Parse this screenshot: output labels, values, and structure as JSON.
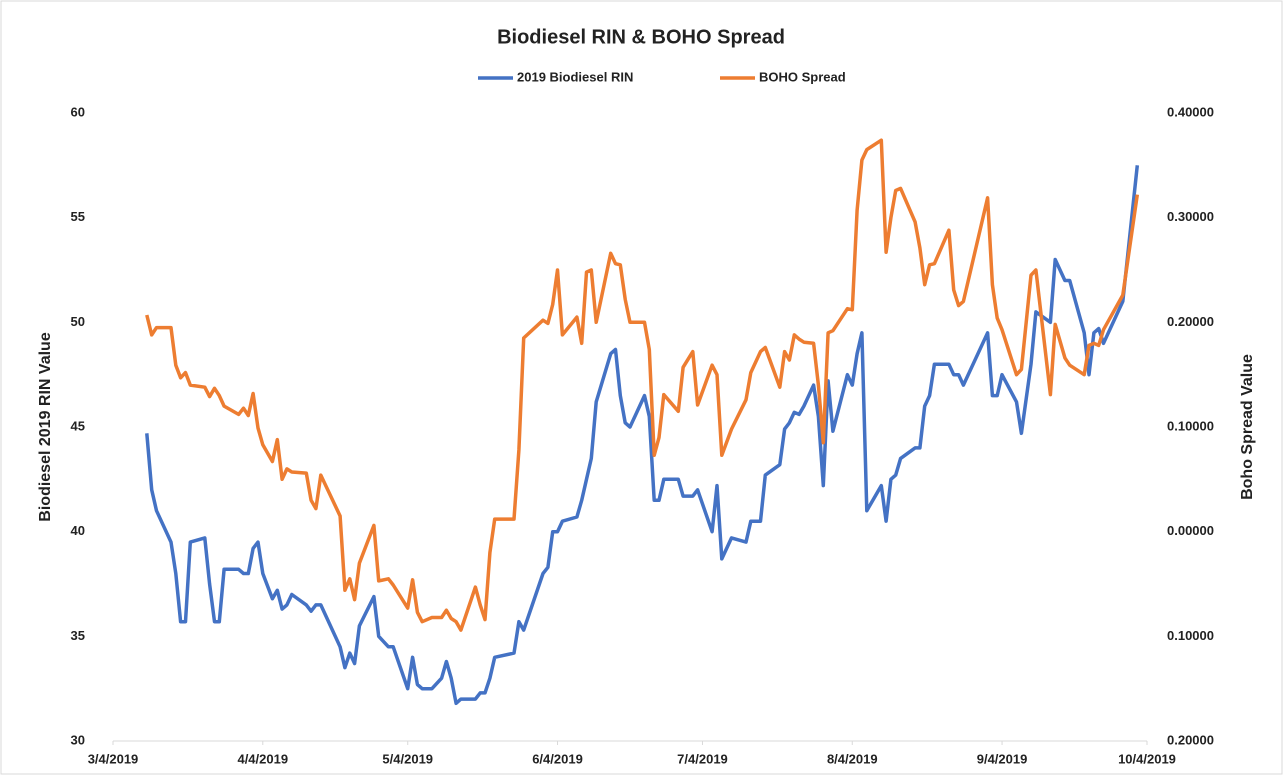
{
  "chart_data": {
    "type": "line",
    "title": "Biodiesel RIN & BOHO Spread",
    "y_label": "Biodiesel 2019 RIN Value",
    "y2_label": "Boho Spread Value",
    "legend": "top",
    "x": [
      "3/11/2019",
      "3/12/2019",
      "3/13/2019",
      "3/16/2019",
      "3/17/2019",
      "3/18/2019",
      "3/19/2019",
      "3/20/2019",
      "3/23/2019",
      "3/24/2019",
      "3/25/2019",
      "3/26/2019",
      "3/27/2019",
      "3/30/2019",
      "3/31/2019",
      "4/1/2019",
      "4/2/2019",
      "4/3/2019",
      "4/4/2019",
      "4/6/2019",
      "4/7/2019",
      "4/8/2019",
      "4/9/2019",
      "4/10/2019",
      "4/13/2019",
      "4/14/2019",
      "4/15/2019",
      "4/16/2019",
      "4/20/2019",
      "4/21/2019",
      "4/22/2019",
      "4/23/2019",
      "4/24/2019",
      "4/27/2019",
      "4/28/2019",
      "4/30/2019",
      "5/1/2019",
      "5/4/2019",
      "5/5/2019",
      "5/6/2019",
      "5/7/2019",
      "5/9/2019",
      "5/11/2019",
      "5/12/2019",
      "5/13/2019",
      "5/14/2019",
      "5/15/2019",
      "5/18/2019",
      "5/19/2019",
      "5/20/2019",
      "5/21/2019",
      "5/22/2019",
      "5/26/2019",
      "5/27/2019",
      "5/28/2019",
      "6/1/2019",
      "6/2/2019",
      "6/3/2019",
      "6/4/2019",
      "6/5/2019",
      "6/8/2019",
      "6/9/2019",
      "6/10/2019",
      "6/11/2019",
      "6/12/2019",
      "6/15/2019",
      "6/16/2019",
      "6/17/2019",
      "6/18/2019",
      "6/19/2019",
      "6/22/2019",
      "6/23/2019",
      "6/24/2019",
      "6/25/2019",
      "6/26/2019",
      "6/29/2019",
      "6/30/2019",
      "7/2/2019",
      "7/3/2019",
      "7/6/2019",
      "7/7/2019",
      "7/8/2019",
      "7/10/2019",
      "7/13/2019",
      "7/14/2019",
      "7/16/2019",
      "7/17/2019",
      "7/20/2019",
      "7/21/2019",
      "7/22/2019",
      "7/23/2019",
      "7/24/2019",
      "7/25/2019",
      "7/27/2019",
      "7/28/2019",
      "7/29/2019",
      "7/30/2019",
      "7/31/2019",
      "8/3/2019",
      "8/4/2019",
      "8/5/2019",
      "8/6/2019",
      "8/7/2019",
      "8/10/2019",
      "8/11/2019",
      "8/12/2019",
      "8/13/2019",
      "8/14/2019",
      "8/17/2019",
      "8/18/2019",
      "8/19/2019",
      "8/20/2019",
      "8/21/2019",
      "8/24/2019",
      "8/25/2019",
      "8/26/2019",
      "8/27/2019",
      "9/1/2019",
      "9/2/2019",
      "9/3/2019",
      "9/4/2019",
      "9/7/2019",
      "9/8/2019",
      "9/10/2019",
      "9/11/2019",
      "9/14/2019",
      "9/15/2019",
      "9/17/2019",
      "9/18/2019",
      "9/21/2019",
      "9/22/2019",
      "9/23/2019",
      "9/24/2019",
      "9/25/2019",
      "9/29/2019",
      "10/2/2019"
    ],
    "series": [
      {
        "name": "2019 Biodiesel RIN",
        "color": "#4472c4",
        "axis": "y",
        "values": [
          44.7,
          42.0,
          41.0,
          39.5,
          38.0,
          35.7,
          35.7,
          39.5,
          39.7,
          37.5,
          35.7,
          35.7,
          38.2,
          38.2,
          38.0,
          38.0,
          39.2,
          39.5,
          38.0,
          36.8,
          37.2,
          36.3,
          36.5,
          37.0,
          36.5,
          36.2,
          36.5,
          36.5,
          34.5,
          33.5,
          34.2,
          33.7,
          35.5,
          36.9,
          35.0,
          34.5,
          34.5,
          32.5,
          34.0,
          32.7,
          32.5,
          32.5,
          33.0,
          33.8,
          33.0,
          31.8,
          32.0,
          32.0,
          32.3,
          32.3,
          33.0,
          34.0,
          34.2,
          35.7,
          35.3,
          38.0,
          38.3,
          40.0,
          40.0,
          40.5,
          40.7,
          41.5,
          42.5,
          43.5,
          46.2,
          48.5,
          48.7,
          46.5,
          45.2,
          45.0,
          46.5,
          45.5,
          41.5,
          41.5,
          42.5,
          42.5,
          41.7,
          41.7,
          42.0,
          40.0,
          42.2,
          38.7,
          39.7,
          39.5,
          40.5,
          40.5,
          42.7,
          43.2,
          44.9,
          45.2,
          45.7,
          45.6,
          46.0,
          47.0,
          45.5,
          42.2,
          47.2,
          44.8,
          47.5,
          47.0,
          48.5,
          49.5,
          41.0,
          42.2,
          40.5,
          42.5,
          42.7,
          43.5,
          44.0,
          44.0,
          46.0,
          46.5,
          48.0,
          48.0,
          47.5,
          47.5,
          47.0,
          49.5,
          46.5,
          46.5,
          47.5,
          46.2,
          44.7,
          48.0,
          50.5,
          50.0,
          53.0,
          52.0,
          52.0,
          49.5,
          47.5,
          49.5,
          49.7,
          49.0,
          51.0,
          57.5
        ]
      },
      {
        "name": "BOHO Spread",
        "color": "#ed7d31",
        "axis": "y2",
        "values": [
          0.207,
          0.188,
          0.195,
          0.195,
          0.159,
          0.147,
          0.152,
          0.14,
          0.138,
          0.129,
          0.137,
          0.13,
          0.12,
          0.112,
          0.118,
          0.111,
          0.132,
          0.099,
          0.083,
          0.067,
          0.088,
          0.05,
          0.06,
          0.057,
          0.056,
          0.03,
          0.022,
          0.054,
          0.015,
          -0.056,
          -0.045,
          -0.065,
          -0.03,
          0.006,
          -0.047,
          -0.045,
          -0.051,
          -0.073,
          -0.046,
          -0.077,
          -0.086,
          -0.082,
          -0.082,
          -0.075,
          -0.083,
          -0.086,
          -0.094,
          -0.053,
          -0.07,
          -0.084,
          -0.02,
          0.012,
          0.012,
          0.078,
          0.185,
          0.202,
          0.199,
          0.217,
          0.25,
          0.188,
          0.205,
          0.18,
          0.248,
          0.25,
          0.2,
          0.266,
          0.256,
          0.255,
          0.222,
          0.2,
          0.2,
          0.174,
          0.073,
          0.09,
          0.131,
          0.115,
          0.157,
          0.172,
          0.121,
          0.159,
          0.15,
          0.073,
          0.098,
          0.126,
          0.152,
          0.172,
          0.176,
          0.138,
          0.172,
          0.164,
          0.188,
          0.184,
          0.181,
          0.18,
          0.14,
          0.085,
          0.19,
          0.192,
          0.213,
          0.212,
          0.307,
          0.355,
          0.365,
          0.374,
          0.267,
          0.3,
          0.326,
          0.328,
          0.296,
          0.271,
          0.236,
          0.255,
          0.256,
          0.288,
          0.231,
          0.216,
          0.22,
          0.319,
          0.236,
          0.204,
          0.193,
          0.15,
          0.155,
          0.245,
          0.25,
          0.131,
          0.198,
          0.166,
          0.159,
          0.15,
          0.178,
          0.18,
          0.178,
          0.193,
          0.226,
          0.322
        ]
      }
    ],
    "xlim": [
      "3/4/2019",
      "10/4/2019"
    ],
    "xticks": [
      "3/4/2019",
      "4/4/2019",
      "5/4/2019",
      "6/4/2019",
      "7/4/2019",
      "8/4/2019",
      "9/4/2019",
      "10/4/2019"
    ],
    "ylim": [
      30,
      60
    ],
    "yticks": [
      30,
      35,
      40,
      45,
      50,
      55,
      60
    ],
    "y2lim": [
      -0.2,
      0.4
    ],
    "y2ticks": [
      {
        "value": -0.2,
        "label": "0.20000"
      },
      {
        "value": -0.1,
        "label": "0.10000"
      },
      {
        "value": 0,
        "label": "0.00000"
      },
      {
        "value": 0.1,
        "label": "0.10000"
      },
      {
        "value": 0.2,
        "label": "0.20000"
      },
      {
        "value": 0.3,
        "label": "0.30000"
      },
      {
        "value": 0.4,
        "label": "0.40000"
      }
    ],
    "y2_negative_tick_color": "#ff0000",
    "grid": false
  }
}
